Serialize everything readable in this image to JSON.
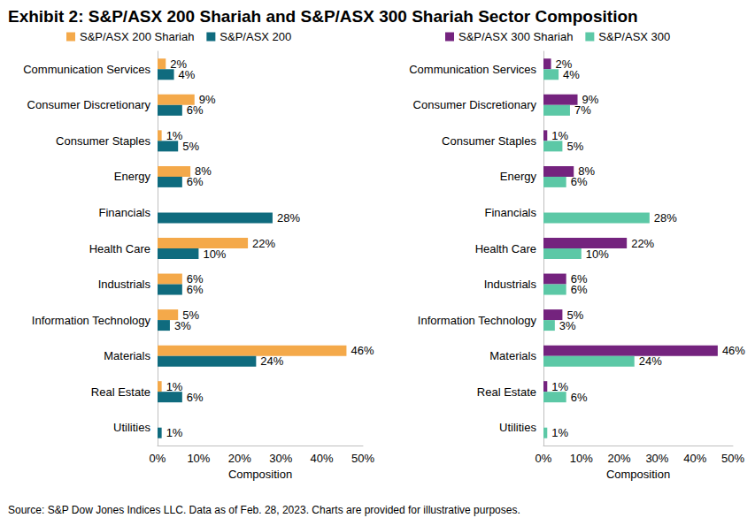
{
  "title": "Exhibit 2: S&P/ASX 200 Shariah and S&P/ASX 300 Shariah Sector Composition",
  "source": "Source: S&P Dow Jones Indices LLC. Data as of Feb. 28, 2023. Charts are provided for illustrative purposes.",
  "chart_data": [
    {
      "type": "bar",
      "orientation": "horizontal",
      "data_labels": true,
      "grid": false,
      "legend": "top",
      "x_label": "Composition",
      "categories": [
        "Communication Services",
        "Consumer Discretionary",
        "Consumer Staples",
        "Energy",
        "Financials",
        "Health Care",
        "Industrials",
        "Information Technology",
        "Materials",
        "Real Estate",
        "Utilities"
      ],
      "xlim": [
        0,
        50
      ],
      "xticks": [
        {
          "value": 0,
          "label": "0%"
        },
        {
          "value": 10,
          "label": "10%"
        },
        {
          "value": 20,
          "label": "20%"
        },
        {
          "value": 30,
          "label": "30%"
        },
        {
          "value": 40,
          "label": "40%"
        },
        {
          "value": 50,
          "label": "50%"
        }
      ],
      "series": [
        {
          "name": "S&P/ASX 200 Shariah",
          "color": "#f4a94a",
          "values": [
            2,
            9,
            1,
            8,
            null,
            22,
            6,
            5,
            46,
            1,
            null
          ],
          "value_labels": [
            "2%",
            "9%",
            "1%",
            "8%",
            null,
            "22%",
            "6%",
            "5%",
            "46%",
            "1%",
            null
          ]
        },
        {
          "name": "S&P/ASX 200",
          "color": "#0f6b7e",
          "values": [
            4,
            6,
            5,
            6,
            28,
            10,
            6,
            3,
            24,
            6,
            1
          ],
          "value_labels": [
            "4%",
            "6%",
            "5%",
            "6%",
            "28%",
            "10%",
            "6%",
            "3%",
            "24%",
            "6%",
            "1%"
          ]
        }
      ]
    },
    {
      "type": "bar",
      "orientation": "horizontal",
      "data_labels": true,
      "grid": false,
      "legend": "top",
      "x_label": "Composition",
      "categories": [
        "Communication Services",
        "Consumer Discretionary",
        "Consumer Staples",
        "Energy",
        "Financials",
        "Health Care",
        "Industrials",
        "Information Technology",
        "Materials",
        "Real Estate",
        "Utilities"
      ],
      "xlim": [
        0,
        50
      ],
      "xticks": [
        {
          "value": 0,
          "label": "0%"
        },
        {
          "value": 10,
          "label": "10%"
        },
        {
          "value": 20,
          "label": "20%"
        },
        {
          "value": 30,
          "label": "30%"
        },
        {
          "value": 40,
          "label": "40%"
        },
        {
          "value": 50,
          "label": "50%"
        }
      ],
      "series": [
        {
          "name": "S&P/ASX 300 Shariah",
          "color": "#74237e",
          "values": [
            2,
            9,
            1,
            8,
            null,
            22,
            6,
            5,
            46,
            1,
            null
          ],
          "value_labels": [
            "2%",
            "9%",
            "1%",
            "8%",
            null,
            "22%",
            "6%",
            "5%",
            "46%",
            "1%",
            null
          ]
        },
        {
          "name": "S&P/ASX 300",
          "color": "#5cc8a6",
          "values": [
            4,
            7,
            5,
            6,
            28,
            10,
            6,
            3,
            24,
            6,
            1
          ],
          "value_labels": [
            "4%",
            "7%",
            "5%",
            "6%",
            "28%",
            "10%",
            "6%",
            "3%",
            "24%",
            "6%",
            "1%"
          ]
        }
      ]
    }
  ]
}
